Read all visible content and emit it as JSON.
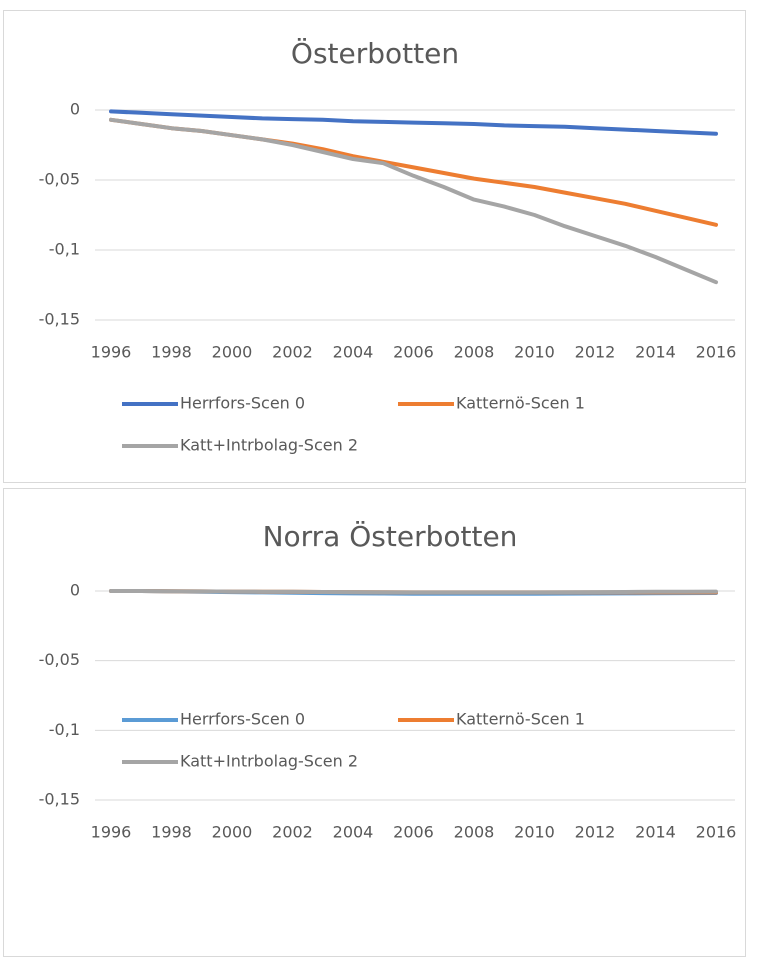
{
  "chart_data": [
    {
      "type": "line",
      "title": "Österbotten",
      "x": [
        1996,
        1997,
        1998,
        1999,
        2000,
        2001,
        2002,
        2003,
        2004,
        2005,
        2006,
        2007,
        2008,
        2009,
        2010,
        2011,
        2012,
        2013,
        2014,
        2015,
        2016
      ],
      "xlim": [
        1996,
        2016
      ],
      "xticks": [
        1996,
        1998,
        2000,
        2002,
        2004,
        2006,
        2008,
        2010,
        2012,
        2014,
        2016
      ],
      "ylim": [
        -0.15,
        0
      ],
      "yticks": [
        {
          "value": 0,
          "label": "0"
        },
        {
          "value": -0.05,
          "label": "-0,05"
        },
        {
          "value": -0.1,
          "label": "-0,1"
        },
        {
          "value": -0.15,
          "label": "-0,15"
        }
      ],
      "grid": true,
      "series": [
        {
          "name": "Herrfors-Scen 0",
          "color": "#4472c4",
          "values": [
            -0.001,
            -0.002,
            -0.003,
            -0.004,
            -0.005,
            -0.006,
            -0.0065,
            -0.007,
            -0.008,
            -0.0085,
            -0.009,
            -0.0095,
            -0.01,
            -0.011,
            -0.0115,
            -0.012,
            -0.013,
            -0.014,
            -0.015,
            -0.016,
            -0.017
          ]
        },
        {
          "name": "Katternö-Scen 1",
          "color": "#ed7d31",
          "values": [
            -0.007,
            -0.01,
            -0.013,
            -0.015,
            -0.018,
            -0.021,
            -0.024,
            -0.028,
            -0.033,
            -0.037,
            -0.041,
            -0.045,
            -0.049,
            -0.052,
            -0.055,
            -0.059,
            -0.063,
            -0.067,
            -0.072,
            -0.077,
            -0.082
          ]
        },
        {
          "name": "Katt+Intrbolag-Scen 2",
          "color": "#a5a5a5",
          "values": [
            -0.007,
            -0.01,
            -0.013,
            -0.015,
            -0.018,
            -0.021,
            -0.025,
            -0.03,
            -0.035,
            -0.038,
            -0.047,
            -0.055,
            -0.064,
            -0.069,
            -0.075,
            -0.083,
            -0.09,
            -0.097,
            -0.105,
            -0.114,
            -0.123
          ]
        }
      ]
    },
    {
      "type": "line",
      "title": "Norra Österbotten",
      "x": [
        1996,
        1997,
        1998,
        1999,
        2000,
        2001,
        2002,
        2003,
        2004,
        2005,
        2006,
        2007,
        2008,
        2009,
        2010,
        2011,
        2012,
        2013,
        2014,
        2015,
        2016
      ],
      "xlim": [
        1996,
        2016
      ],
      "xticks": [
        1996,
        1998,
        2000,
        2002,
        2004,
        2006,
        2008,
        2010,
        2012,
        2014,
        2016
      ],
      "ylim": [
        -0.15,
        0
      ],
      "yticks": [
        {
          "value": 0,
          "label": "0"
        },
        {
          "value": -0.05,
          "label": "-0,05"
        },
        {
          "value": -0.1,
          "label": "-0,1"
        },
        {
          "value": -0.15,
          "label": "-0,15"
        }
      ],
      "grid": true,
      "series": [
        {
          "name": "Herrfors-Scen 0",
          "color": "#5b9bd5",
          "values": [
            0,
            0,
            -0.0003,
            -0.0005,
            -0.0008,
            -0.001,
            -0.0013,
            -0.0015,
            -0.0017,
            -0.0018,
            -0.002,
            -0.002,
            -0.002,
            -0.002,
            -0.002,
            -0.0019,
            -0.0018,
            -0.0017,
            -0.0016,
            -0.0015,
            -0.0014
          ]
        },
        {
          "name": "Katternö-Scen 1",
          "color": "#ed7d31",
          "values": [
            0,
            0,
            -0.0002,
            -0.0003,
            -0.0004,
            -0.0005,
            -0.0006,
            -0.0007,
            -0.0008,
            -0.0009,
            -0.001,
            -0.001,
            -0.001,
            -0.001,
            -0.001,
            -0.001,
            -0.001,
            -0.001,
            -0.001,
            -0.001,
            -0.001
          ]
        },
        {
          "name": "Katt+Intrbolag-Scen 2",
          "color": "#a5a5a5",
          "values": [
            0,
            0,
            -0.0002,
            -0.0003,
            -0.0004,
            -0.0005,
            -0.0006,
            -0.0007,
            -0.0008,
            -0.0009,
            -0.001,
            -0.001,
            -0.001,
            -0.001,
            -0.001,
            -0.0009,
            -0.0008,
            -0.0007,
            -0.0006,
            -0.0005,
            -0.0004
          ]
        }
      ]
    }
  ]
}
